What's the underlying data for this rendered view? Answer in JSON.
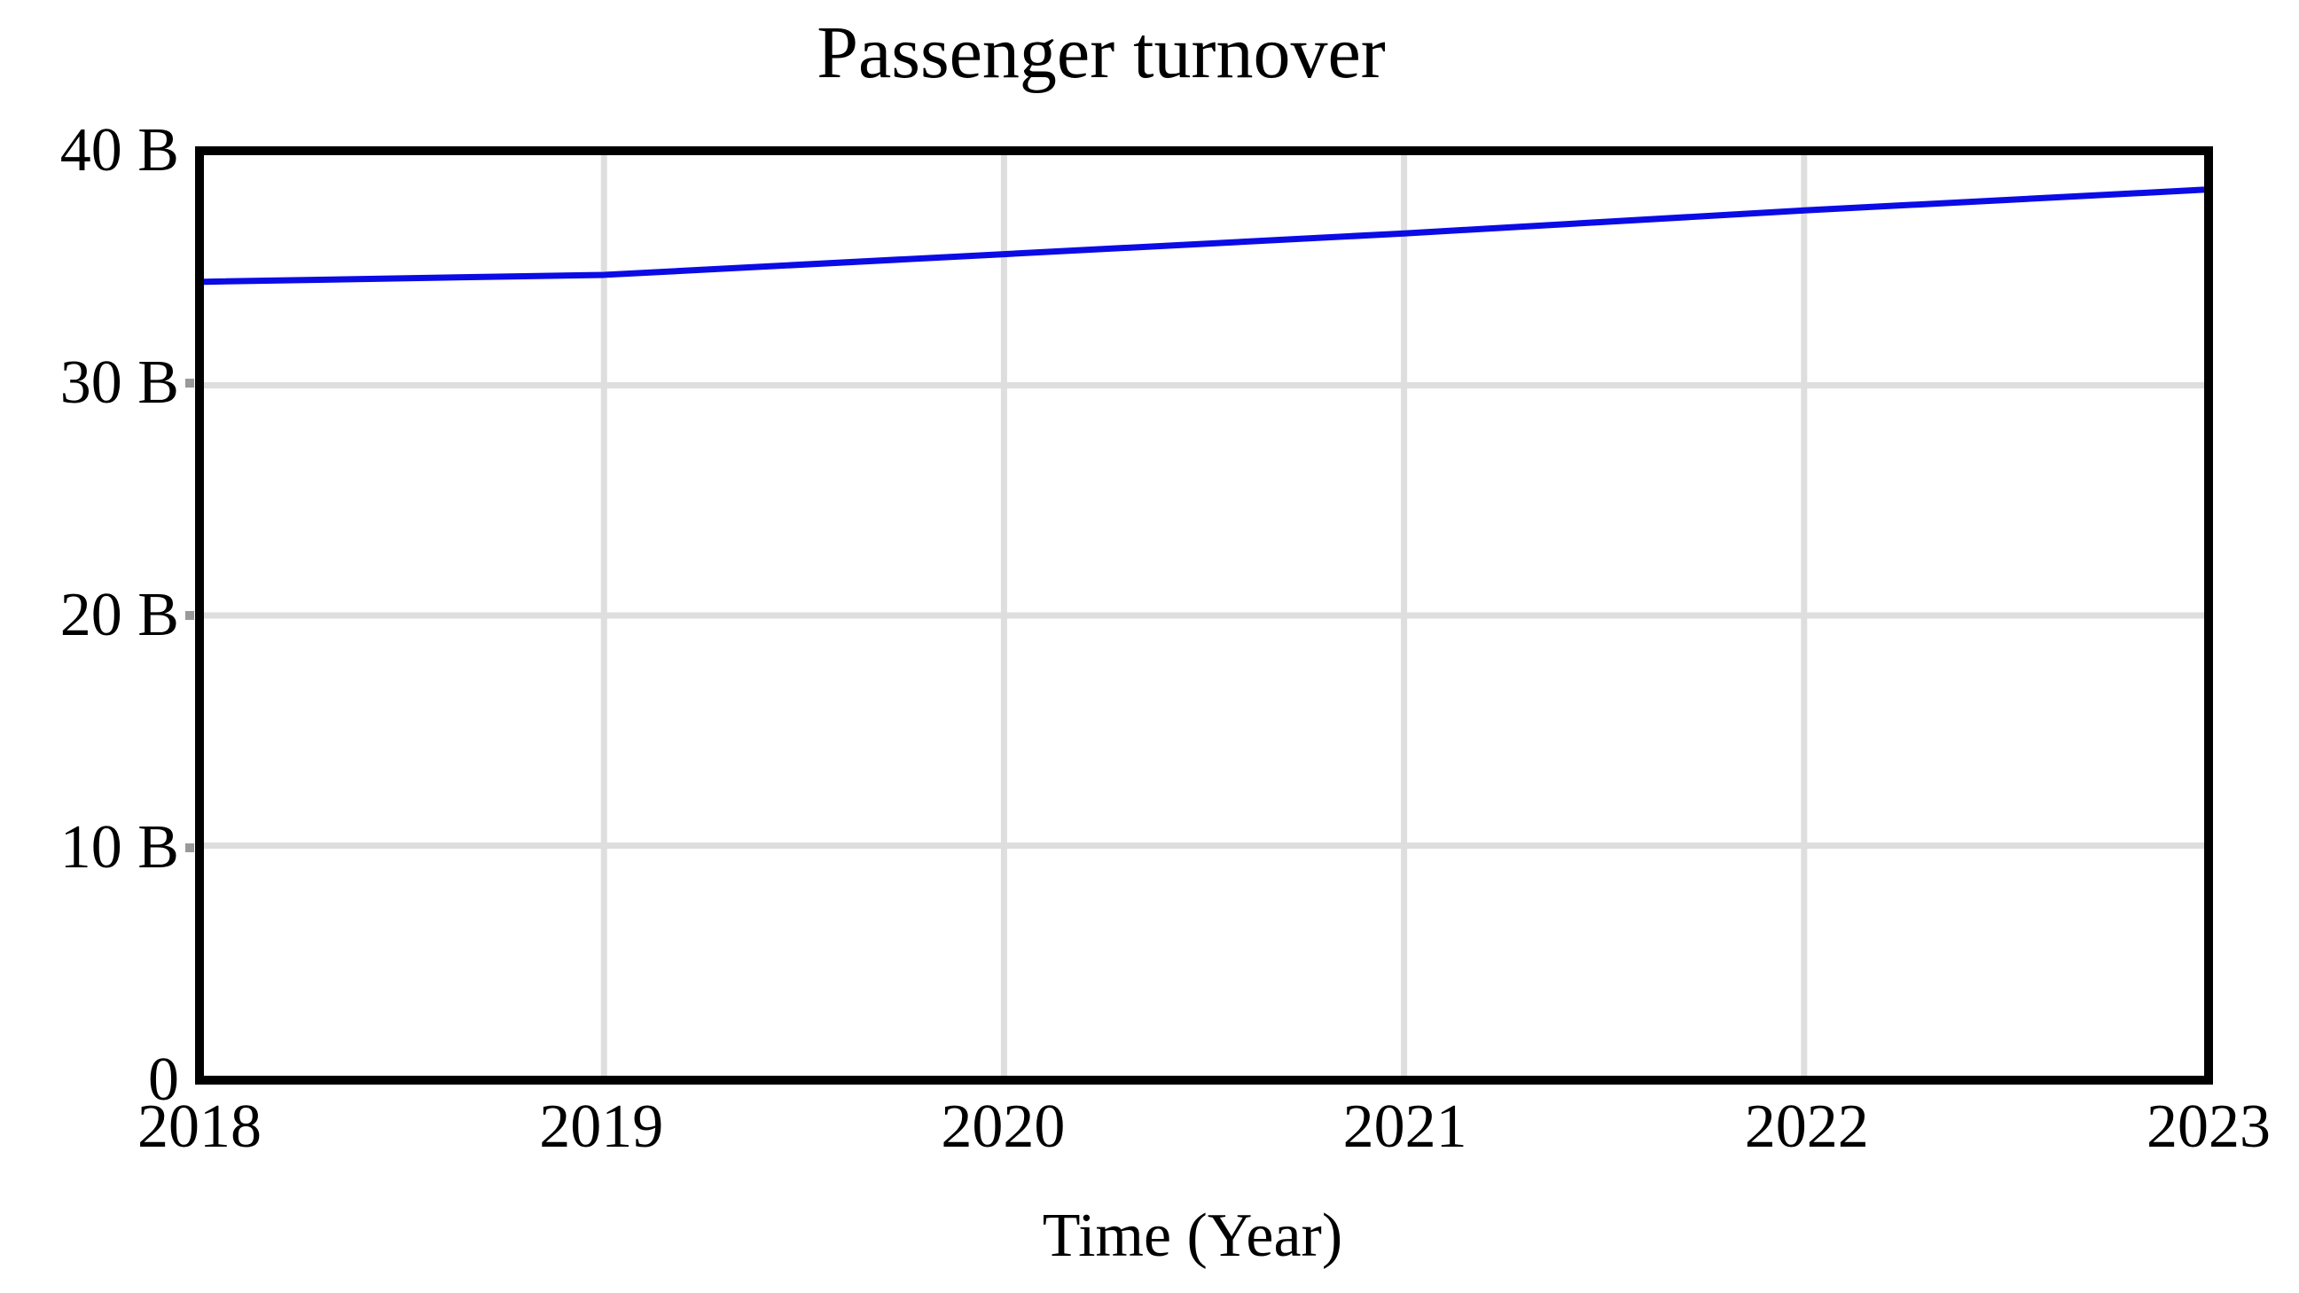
{
  "title": "Passenger turnover",
  "x_axis_title": "Time (Year)",
  "colors": {
    "line": "#0b0be6",
    "gridline": "#dedede",
    "tick_mark": "#9a9a9a",
    "border": "#000000",
    "text": "#000000",
    "background": "#ffffff"
  },
  "chart_data": {
    "type": "line",
    "title": "Passenger turnover",
    "xlabel": "Time (Year)",
    "ylabel": "",
    "x": [
      2018,
      2019,
      2020,
      2021,
      2022,
      2023
    ],
    "series": [
      {
        "name": "Passenger turnover",
        "values": [
          34.5,
          34.8,
          35.7,
          36.6,
          37.6,
          38.5
        ],
        "color": "#0b0be6"
      }
    ],
    "xlim": [
      2018,
      2023
    ],
    "ylim": [
      0,
      40
    ],
    "xticks": [
      {
        "value": 2018,
        "label": "2018"
      },
      {
        "value": 2019,
        "label": "2019"
      },
      {
        "value": 2020,
        "label": "2020"
      },
      {
        "value": 2021,
        "label": "2021"
      },
      {
        "value": 2022,
        "label": "2022"
      },
      {
        "value": 2023,
        "label": "2023"
      }
    ],
    "yticks": [
      {
        "value": 0,
        "label": "0"
      },
      {
        "value": 10,
        "label": "10 B"
      },
      {
        "value": 20,
        "label": "20 B"
      },
      {
        "value": 30,
        "label": "30 B"
      },
      {
        "value": 40,
        "label": "40 B"
      }
    ],
    "grid": true,
    "legend_position": "none"
  }
}
